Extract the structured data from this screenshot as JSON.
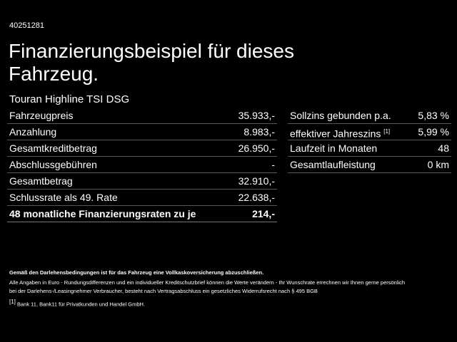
{
  "header": {
    "id": "40251281",
    "title_lines": [
      "Finanzierungsbeispiel für dieses",
      "Fahrzeug."
    ]
  },
  "model": "Touran Highline TSI DSG",
  "left_table": {
    "rows": [
      [
        "Fahrzeugpreis",
        "35.933,-"
      ],
      [
        "Anzahlung",
        "8.983,-"
      ],
      [
        "Gesamtkreditbetrag",
        "26.950,-"
      ],
      [
        "Abschlussgebühren",
        "-"
      ],
      [
        "Gesamtbetrag",
        "32.910,-"
      ],
      [
        "Schlussrate als 49. Rate",
        "22.638,-"
      ],
      [
        "48 monatliche Finanzierungsraten zu je",
        "214,-"
      ]
    ]
  },
  "right_table": {
    "rows": [
      {
        "label": "Sollzins gebunden p.a.",
        "value": "5,83 %"
      },
      {
        "label": "effektiver Jahreszins",
        "note": "[1]",
        "value": "5,99 %"
      },
      {
        "label": "Laufzeit in Monaten",
        "value": "48"
      },
      {
        "label": "Gesamtlaufleistung",
        "value": "0 km"
      }
    ]
  },
  "footer": {
    "bold_note": "Gemäß den Darlehensbedingungen ist für das Fahrzeug eine Vollkaskoversicherung abzuschließen.",
    "lines": [
      "Alle Angaben in Euro - Rundungsdifferenzen und ein individueller Kreditschutzbrief können die Werte verändern - Ihr Wunschrate errechnen wir Ihnen gerne persönlich",
      "bei der Darlehens-/Leasingnehmer Verbraucher, besteht nach Vertragsabschluss ein gesetzliches Widerrufsrecht nach § 495 BGB"
    ],
    "footnote": {
      "marker": "[1]",
      "text": "Bank 11, Bank11 für Privatkunden und Handel GmbH."
    }
  }
}
